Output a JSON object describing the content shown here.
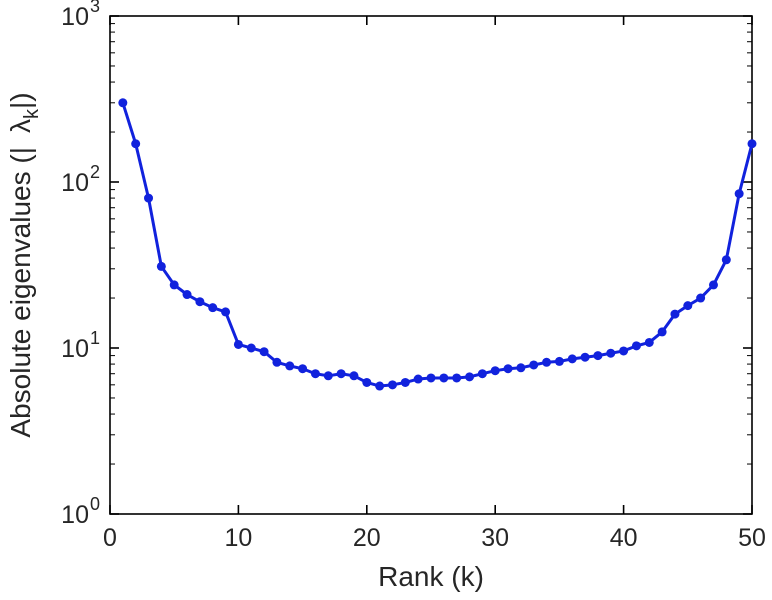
{
  "chart_data": {
    "type": "line",
    "title": "",
    "xlabel": "Rank (k)",
    "ylabel_parts": {
      "prefix": "Absolute eigenvalues (|",
      "symbol": "λ",
      "subscript": "k",
      "suffix": "|)"
    },
    "y_scale": "log",
    "xlim": [
      0,
      50
    ],
    "ylim_log10": [
      0,
      3
    ],
    "x_ticks": [
      0,
      10,
      20,
      30,
      40,
      50
    ],
    "y_tick_base": "10",
    "y_tick_exponents": [
      0,
      1,
      2,
      3
    ],
    "grid": false,
    "legend": "none",
    "line_color": "#1122dd",
    "axis_color": "#000000",
    "tick_label_color": "#262626",
    "marker": "circle",
    "x": [
      1,
      2,
      3,
      4,
      5,
      6,
      7,
      8,
      9,
      10,
      11,
      12,
      13,
      14,
      15,
      16,
      17,
      18,
      19,
      20,
      21,
      22,
      23,
      24,
      25,
      26,
      27,
      28,
      29,
      30,
      31,
      32,
      33,
      34,
      35,
      36,
      37,
      38,
      39,
      40,
      41,
      42,
      43,
      44,
      45,
      46,
      47,
      48,
      49,
      50
    ],
    "values": [
      300,
      170,
      80,
      31,
      24,
      21,
      19,
      17.5,
      16.5,
      10.5,
      10,
      9.5,
      8.2,
      7.8,
      7.5,
      7.0,
      6.8,
      7.0,
      6.8,
      6.2,
      5.9,
      6.0,
      6.2,
      6.5,
      6.6,
      6.6,
      6.6,
      6.7,
      7.0,
      7.3,
      7.5,
      7.6,
      7.9,
      8.2,
      8.3,
      8.6,
      8.8,
      9.0,
      9.3,
      9.6,
      10.3,
      10.8,
      12.5,
      16,
      18,
      20,
      24,
      34,
      85,
      170
    ]
  }
}
